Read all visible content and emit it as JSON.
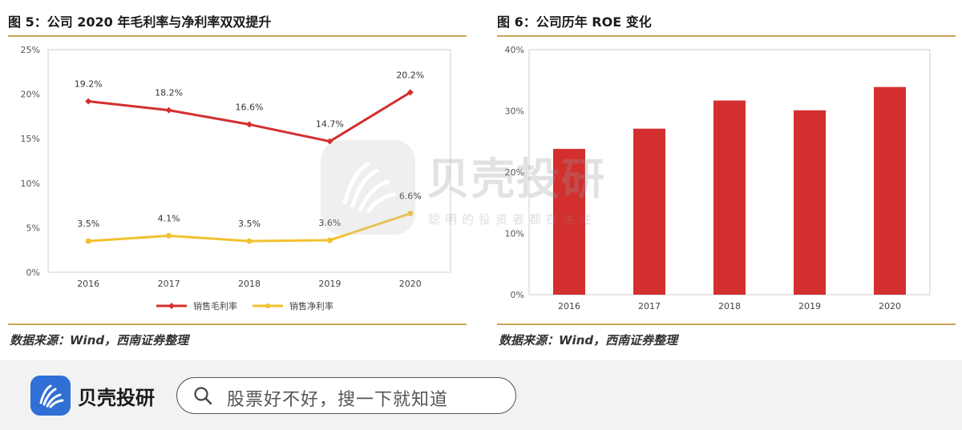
{
  "left_panel": {
    "title": "图 5：公司 2020 年毛利率与净利率双双提升",
    "source": "数据来源：Wind，西南证券整理"
  },
  "right_panel": {
    "title": "图 6：公司历年 ROE 变化",
    "source": "数据来源：Wind，西南证券整理"
  },
  "watermark": {
    "text": "贝壳投研",
    "subtext": "聪明的投资者都在关注"
  },
  "bottom_bar": {
    "brand_name": "贝壳投研",
    "search_placeholder": "股票好不好，搜一下就知道"
  },
  "chart_data": [
    {
      "type": "line",
      "categories": [
        "2016",
        "2017",
        "2018",
        "2019",
        "2020"
      ],
      "y_ticks": [
        "0%",
        "5%",
        "10%",
        "15%",
        "20%",
        "25%"
      ],
      "ylim": [
        0,
        25
      ],
      "series": [
        {
          "name": "销售毛利率",
          "values": [
            19.2,
            18.2,
            16.6,
            14.7,
            20.2
          ],
          "labels": [
            "19.2%",
            "18.2%",
            "16.6%",
            "14.7%",
            "20.2%"
          ],
          "color": "#d32f2f"
        },
        {
          "name": "销售净利率",
          "values": [
            3.5,
            4.1,
            3.5,
            3.6,
            6.6
          ],
          "labels": [
            "3.5%",
            "4.1%",
            "3.5%",
            "3.6%",
            "6.6%"
          ],
          "color": "#f2c12e"
        }
      ],
      "legend_position": "bottom"
    },
    {
      "type": "bar",
      "categories": [
        "2016",
        "2017",
        "2018",
        "2019",
        "2020"
      ],
      "values": [
        23.8,
        27.1,
        31.7,
        30.1,
        33.9
      ],
      "y_ticks": [
        "0%",
        "10%",
        "20%",
        "30%",
        "40%"
      ],
      "ylim": [
        0,
        40
      ],
      "color": "#d32f2f"
    }
  ]
}
